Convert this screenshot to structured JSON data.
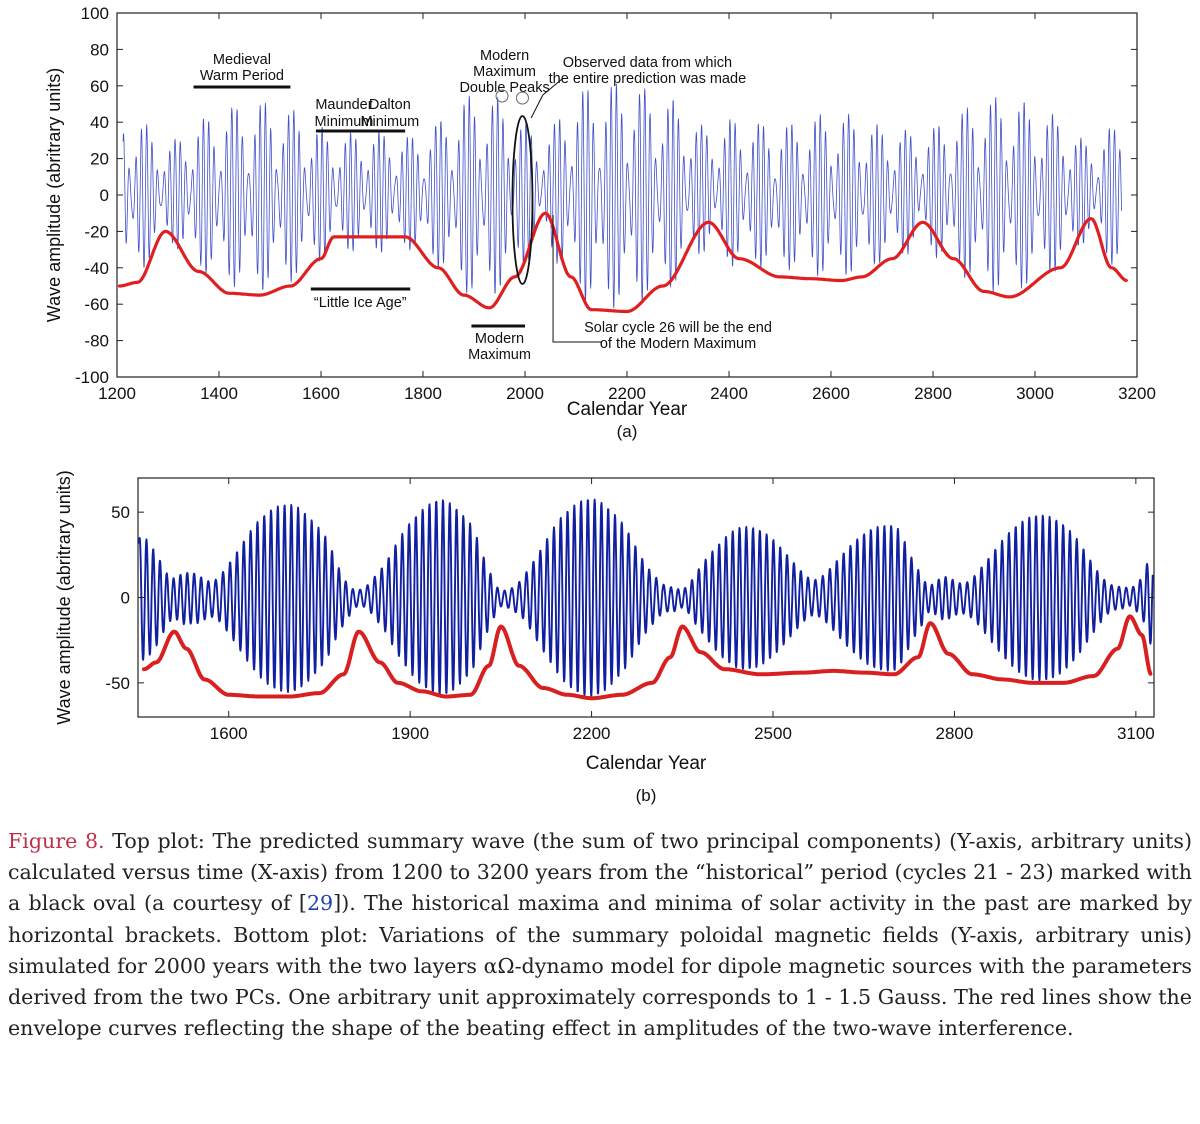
{
  "chart_data": [
    {
      "type": "line",
      "panel_label": "(a)",
      "xlabel": "Calendar Year",
      "ylabel": "Wave amplitude (abritrary units)",
      "xlim": [
        1200,
        3200
      ],
      "ylim": [
        -100,
        100
      ],
      "x_ticks": [
        "1200",
        "1400",
        "1600",
        "1800",
        "2000",
        "2200",
        "2400",
        "2600",
        "2800",
        "3000",
        "3200"
      ],
      "y_ticks": [
        "100",
        "80",
        "60",
        "40",
        "20",
        "0",
        "-20",
        "-40",
        "-60",
        "-80",
        "-100"
      ],
      "grid": false,
      "series": [
        {
          "color": "#4050c8",
          "x": [
            1205,
            1300,
            1400,
            1500,
            1600,
            1700,
            1800,
            1900,
            2000,
            2100,
            2200,
            2300,
            2400,
            2500,
            2600,
            2700,
            2800,
            2900,
            3000,
            3100,
            3170
          ],
          "values": [
            40,
            35,
            45,
            50,
            40,
            45,
            38,
            55,
            45,
            60,
            62,
            58,
            50,
            35,
            45,
            38,
            50,
            55,
            50,
            40,
            35
          ]
        },
        {
          "color": "#e02020",
          "x": [
            1205,
            1240,
            1295,
            1360,
            1420,
            1480,
            1540,
            1600,
            1625,
            1700,
            1765,
            1830,
            1880,
            1930,
            1980,
            2040,
            2090,
            2130,
            2200,
            2270,
            2360,
            2420,
            2500,
            2560,
            2620,
            2660,
            2720,
            2780,
            2840,
            2900,
            2950,
            3050,
            3110,
            3150,
            3180
          ],
          "values": [
            -50,
            -48,
            -20,
            -42,
            -54,
            -55,
            -50,
            -35,
            -23,
            -23,
            -23,
            -40,
            -55,
            -62,
            -45,
            -10,
            -45,
            -63,
            -64,
            -50,
            -15,
            -35,
            -45,
            -46,
            -47,
            -45,
            -35,
            -15,
            -35,
            -53,
            -56,
            -40,
            -13,
            -40,
            -47
          ]
        }
      ],
      "annotations": [
        {
          "lines": [
            "Medieval",
            "Warm Period"
          ],
          "bracket": [
            1350,
            1540
          ]
        },
        {
          "lines": [
            "Maunder",
            "Minimum"
          ],
          "bracket": [
            1590,
            1700
          ]
        },
        {
          "lines": [
            "Dalton",
            "Minimum"
          ],
          "bracket": [
            1700,
            1765
          ]
        },
        {
          "lines": [
            "Modern",
            "Maximum",
            "Double Peaks"
          ]
        },
        {
          "lines": [
            "Observed data from which",
            "the entire prediction was made"
          ]
        },
        {
          "lines": [
            "“Little Ice Age”"
          ],
          "bracket": [
            1580,
            1775
          ]
        },
        {
          "lines": [
            "Modern",
            "Maximum"
          ],
          "bracket": [
            1895,
            2000
          ]
        },
        {
          "lines": [
            "Solar cycle 26 will be the end",
            "of the Modern Maximum"
          ]
        }
      ]
    },
    {
      "type": "line",
      "panel_label": "(b)",
      "xlabel": "Calendar Year",
      "ylabel": "Wave amplitude (abritrary units)",
      "xlim": [
        1450,
        3130
      ],
      "ylim": [
        -70,
        70
      ],
      "x_ticks": [
        "1600",
        "1900",
        "2200",
        "2500",
        "2800",
        "3100"
      ],
      "y_ticks": [
        "50",
        "0",
        "-50"
      ],
      "grid": false,
      "series": [
        {
          "color": "#1020a0",
          "x": [
            1460,
            1500,
            1550,
            1600,
            1650,
            1700,
            1760,
            1800,
            1850,
            1900,
            1950,
            2000,
            2050,
            2100,
            2150,
            2200,
            2250,
            2300,
            2350,
            2400,
            2450,
            2500,
            2550,
            2600,
            2650,
            2700,
            2750,
            2800,
            2850,
            2900,
            2950,
            3000,
            3050,
            3100,
            3125
          ],
          "values": [
            30,
            10,
            30,
            47,
            52,
            52,
            45,
            10,
            40,
            52,
            57,
            52,
            10,
            45,
            55,
            57,
            55,
            40,
            8,
            28,
            40,
            43,
            43,
            43,
            42,
            40,
            5,
            30,
            42,
            46,
            47,
            46,
            30,
            15,
            30
          ]
        },
        {
          "color": "#d82020",
          "x": [
            1460,
            1480,
            1510,
            1530,
            1560,
            1600,
            1650,
            1700,
            1750,
            1790,
            1815,
            1850,
            1880,
            1920,
            1960,
            2000,
            2030,
            2050,
            2080,
            2120,
            2160,
            2200,
            2250,
            2300,
            2330,
            2350,
            2380,
            2420,
            2480,
            2550,
            2600,
            2650,
            2700,
            2740,
            2760,
            2790,
            2830,
            2880,
            2930,
            2980,
            3030,
            3070,
            3090,
            3110,
            3125
          ],
          "values": [
            -42,
            -38,
            -20,
            -30,
            -48,
            -57,
            -58,
            -58,
            -56,
            -45,
            -20,
            -38,
            -50,
            -55,
            -58,
            -57,
            -40,
            -17,
            -40,
            -53,
            -57,
            -59,
            -57,
            -50,
            -35,
            -17,
            -32,
            -42,
            -45,
            -44,
            -43,
            -44,
            -45,
            -35,
            -15,
            -33,
            -45,
            -48,
            -50,
            -50,
            -46,
            -30,
            -11,
            -22,
            -45
          ]
        }
      ]
    }
  ],
  "caption": {
    "label": "Figure 8.",
    "text_1": " Top plot: The predicted summary wave (the sum of two principal components) (Y-axis, arbitrary units) calculated versus time (X-axis) from 1200 to 3200 years from the “historical” period (cycles 21 - 23) marked with a black oval (a courtesy of [",
    "ref": "29",
    "text_2": "]). The historical maxima and minima of solar activity in the past are marked by horizontal brackets. Bottom plot: Variations of the summary poloidal magnetic fields (Y-axis, arbitrary unis) simulated for 2000 years with the two layers αΩ-dynamo model for dipole magnetic sources with the parameters derived from the two PCs. One arbitrary unit approximately corresponds to 1 - 1.5 Gauss. The red lines show the envelope curves reflecting the shape of the beating effect in amplitudes of the two-wave interference."
  }
}
